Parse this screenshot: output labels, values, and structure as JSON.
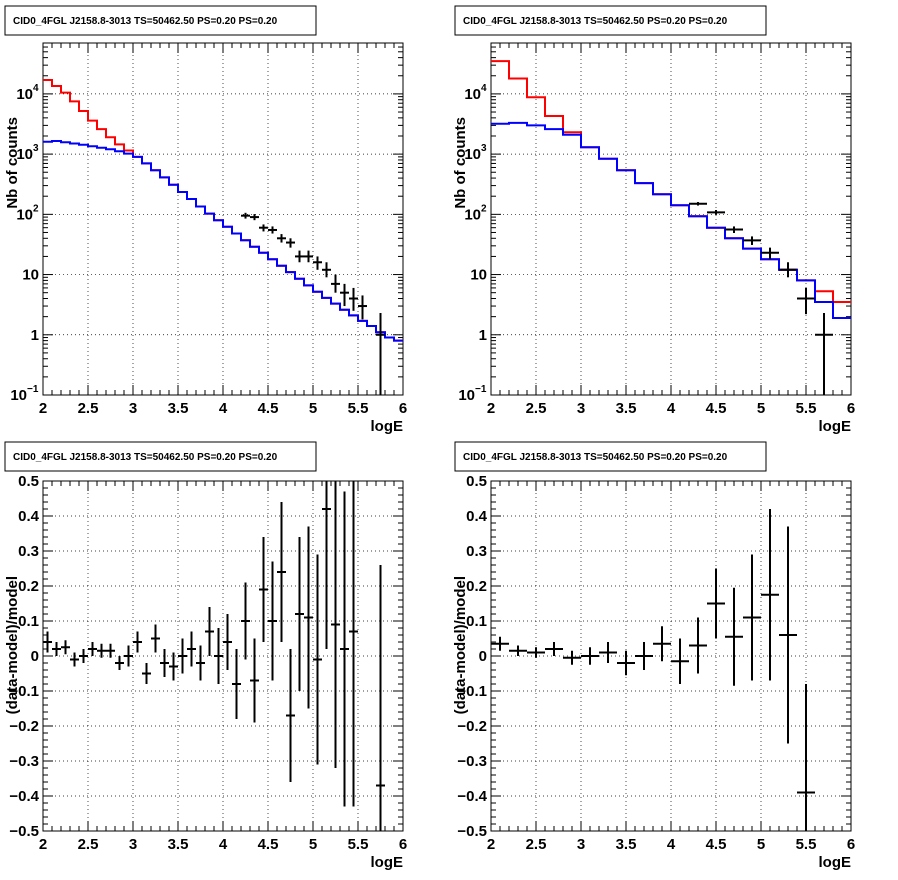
{
  "chart_data": [
    {
      "type": "histogram",
      "title": "CID0_4FGL J2158.8-3013 TS=50462.50 PS=0.20 PS=0.20",
      "xlabel": "logE",
      "ylabel": "Nb of counts",
      "xlim": [
        2,
        6
      ],
      "ylim": [
        0.1,
        70000
      ],
      "yscale": "log",
      "grid": true,
      "xticks": [
        "2",
        "2.5",
        "3",
        "3.5",
        "4",
        "4.5",
        "5",
        "5.5",
        "6"
      ],
      "yticks": [
        {
          "value": 0.1,
          "base": "10",
          "exp": "−1"
        },
        {
          "value": 1,
          "text": "1"
        },
        {
          "value": 10,
          "text": "10"
        },
        {
          "value": 100,
          "base": "10",
          "exp": "2"
        },
        {
          "value": 1000,
          "base": "10",
          "exp": "3"
        },
        {
          "value": 10000,
          "base": "10",
          "exp": "4"
        }
      ],
      "bin_edges": [
        2.0,
        2.1,
        2.2,
        2.3,
        2.4,
        2.5,
        2.6,
        2.7,
        2.8,
        2.9,
        3.0,
        3.1,
        3.2,
        3.3,
        3.4,
        3.5,
        3.6,
        3.7,
        3.8,
        3.9,
        4.0,
        4.1,
        4.2,
        4.3,
        4.4,
        4.5,
        4.6,
        4.7,
        4.8,
        4.9,
        5.0,
        5.1,
        5.2,
        5.3,
        5.4,
        5.5,
        5.6,
        5.7,
        5.8,
        5.9,
        6.0
      ],
      "series": [
        {
          "role": "total-model",
          "color": "#ff0000",
          "values": [
            17000,
            13500,
            10500,
            7500,
            5200,
            3600,
            2600,
            1900,
            1450,
            1150,
            900,
            700,
            540,
            410,
            310,
            235,
            180,
            135,
            103,
            80,
            62,
            48,
            37,
            29,
            23,
            18,
            14,
            11,
            8.5,
            6.6,
            5.2,
            4.1,
            3.3,
            2.6,
            2.1,
            1.7,
            1.4,
            1.1,
            0.9,
            0.8
          ]
        },
        {
          "role": "source-model",
          "color": "#0000ff",
          "values": [
            1600,
            1650,
            1580,
            1500,
            1430,
            1350,
            1280,
            1200,
            1120,
            1020,
            900,
            700,
            540,
            410,
            310,
            235,
            180,
            135,
            103,
            80,
            62,
            48,
            37,
            29,
            23,
            18,
            14,
            11,
            8.5,
            6.6,
            5.2,
            4.1,
            3.3,
            2.6,
            2.1,
            1.7,
            1.4,
            1.1,
            0.9,
            0.8
          ]
        }
      ],
      "points": [
        {
          "x": 4.25,
          "y": 95,
          "lo": 85,
          "hi": 106
        },
        {
          "x": 4.35,
          "y": 90,
          "lo": 80,
          "hi": 101
        },
        {
          "x": 4.45,
          "y": 60,
          "lo": 52,
          "hi": 68
        },
        {
          "x": 4.55,
          "y": 55,
          "lo": 48,
          "hi": 63
        },
        {
          "x": 4.65,
          "y": 40,
          "lo": 34,
          "hi": 47
        },
        {
          "x": 4.75,
          "y": 34,
          "lo": 28,
          "hi": 40
        },
        {
          "x": 4.85,
          "y": 20,
          "lo": 16,
          "hi": 25
        },
        {
          "x": 4.95,
          "y": 20,
          "lo": 16,
          "hi": 25
        },
        {
          "x": 5.05,
          "y": 16,
          "lo": 12,
          "hi": 20
        },
        {
          "x": 5.15,
          "y": 12,
          "lo": 9,
          "hi": 16
        },
        {
          "x": 5.25,
          "y": 7,
          "lo": 5,
          "hi": 10
        },
        {
          "x": 5.35,
          "y": 5,
          "lo": 3,
          "hi": 7
        },
        {
          "x": 5.45,
          "y": 4,
          "lo": 2.5,
          "hi": 6
        },
        {
          "x": 5.55,
          "y": 3,
          "lo": 1.8,
          "hi": 4.5
        },
        {
          "x": 5.75,
          "y": 1,
          "lo": 0.1,
          "hi": 2.3
        }
      ]
    },
    {
      "type": "histogram",
      "title": "CID0_4FGL J2158.8-3013 TS=50462.50 PS=0.20 PS=0.20",
      "xlabel": "logE",
      "ylabel": "Nb of counts",
      "xlim": [
        2,
        6
      ],
      "ylim": [
        0.1,
        70000
      ],
      "yscale": "log",
      "grid": true,
      "xticks": [
        "2",
        "2.5",
        "3",
        "3.5",
        "4",
        "4.5",
        "5",
        "5.5",
        "6"
      ],
      "yticks": [
        {
          "value": 0.1,
          "base": "10",
          "exp": "−1"
        },
        {
          "value": 1,
          "text": "1"
        },
        {
          "value": 10,
          "text": "10"
        },
        {
          "value": 100,
          "base": "10",
          "exp": "2"
        },
        {
          "value": 1000,
          "base": "10",
          "exp": "3"
        },
        {
          "value": 10000,
          "base": "10",
          "exp": "4"
        }
      ],
      "bin_edges": [
        2.0,
        2.2,
        2.4,
        2.6,
        2.8,
        3.0,
        3.2,
        3.4,
        3.6,
        3.8,
        4.0,
        4.2,
        4.4,
        4.6,
        4.8,
        5.0,
        5.2,
        5.4,
        5.6,
        5.8,
        6.0
      ],
      "series": [
        {
          "role": "total-model",
          "color": "#ff0000",
          "values": [
            35000,
            18000,
            8800,
            4300,
            2300,
            1300,
            840,
            540,
            330,
            215,
            142,
            93,
            60,
            40,
            27,
            18,
            12,
            8,
            5.3,
            3.5
          ]
        },
        {
          "role": "source-model",
          "color": "#0000ff",
          "values": [
            3200,
            3300,
            3000,
            2600,
            2100,
            1300,
            840,
            540,
            330,
            215,
            142,
            93,
            60,
            40,
            27,
            18,
            12,
            8,
            3.5,
            1.9
          ]
        }
      ],
      "points": [
        {
          "x": 4.3,
          "y": 150,
          "lo": 140,
          "hi": 160
        },
        {
          "x": 4.5,
          "y": 108,
          "lo": 98,
          "hi": 118
        },
        {
          "x": 4.7,
          "y": 56,
          "lo": 49,
          "hi": 63
        },
        {
          "x": 4.9,
          "y": 37,
          "lo": 31,
          "hi": 43
        },
        {
          "x": 5.1,
          "y": 23,
          "lo": 18,
          "hi": 28
        },
        {
          "x": 5.3,
          "y": 12,
          "lo": 9,
          "hi": 16
        },
        {
          "x": 5.5,
          "y": 4,
          "lo": 2.2,
          "hi": 6
        },
        {
          "x": 5.7,
          "y": 1,
          "lo": 0.1,
          "hi": 2.3
        }
      ]
    },
    {
      "type": "scatter",
      "title": "CID0_4FGL J2158.8-3013 TS=50462.50 PS=0.20 PS=0.20",
      "xlabel": "logE",
      "ylabel": "(data-model)/model",
      "xlim": [
        2,
        6
      ],
      "ylim": [
        -0.5,
        0.5
      ],
      "grid": true,
      "xticks": [
        "2",
        "2.5",
        "3",
        "3.5",
        "4",
        "4.5",
        "5",
        "5.5",
        "6"
      ],
      "yticks": [
        "−0.5",
        "−0.4",
        "−0.3",
        "−0.2",
        "−0.1",
        "0",
        "0.1",
        "0.2",
        "0.3",
        "0.4",
        "0.5"
      ],
      "xerr": 0.05,
      "points": [
        {
          "x": 2.05,
          "y": 0.04,
          "err": 0.03
        },
        {
          "x": 2.15,
          "y": 0.02,
          "err": 0.02
        },
        {
          "x": 2.25,
          "y": 0.025,
          "err": 0.02
        },
        {
          "x": 2.35,
          "y": -0.01,
          "err": 0.02
        },
        {
          "x": 2.45,
          "y": 0.0,
          "err": 0.02
        },
        {
          "x": 2.55,
          "y": 0.02,
          "err": 0.02
        },
        {
          "x": 2.65,
          "y": 0.015,
          "err": 0.02
        },
        {
          "x": 2.75,
          "y": 0.015,
          "err": 0.02
        },
        {
          "x": 2.85,
          "y": -0.02,
          "err": 0.02
        },
        {
          "x": 2.95,
          "y": 0.0,
          "err": 0.03
        },
        {
          "x": 3.05,
          "y": 0.04,
          "err": 0.03
        },
        {
          "x": 3.15,
          "y": -0.05,
          "err": 0.03
        },
        {
          "x": 3.25,
          "y": 0.05,
          "err": 0.04
        },
        {
          "x": 3.35,
          "y": -0.02,
          "err": 0.04
        },
        {
          "x": 3.45,
          "y": -0.03,
          "err": 0.04
        },
        {
          "x": 3.55,
          "y": 0.0,
          "err": 0.05
        },
        {
          "x": 3.65,
          "y": 0.02,
          "err": 0.05
        },
        {
          "x": 3.75,
          "y": -0.02,
          "err": 0.05
        },
        {
          "x": 3.85,
          "y": 0.07,
          "err": 0.07
        },
        {
          "x": 3.95,
          "y": 0.0,
          "err": 0.08
        },
        {
          "x": 4.05,
          "y": 0.04,
          "err": 0.08
        },
        {
          "x": 4.15,
          "y": -0.08,
          "err": 0.1
        },
        {
          "x": 4.25,
          "y": 0.1,
          "err": 0.11
        },
        {
          "x": 4.35,
          "y": -0.07,
          "err": 0.12
        },
        {
          "x": 4.45,
          "y": 0.19,
          "err": 0.15
        },
        {
          "x": 4.55,
          "y": 0.1,
          "err": 0.17
        },
        {
          "x": 4.65,
          "y": 0.24,
          "err": 0.2
        },
        {
          "x": 4.75,
          "y": -0.17,
          "err": 0.19
        },
        {
          "x": 4.85,
          "y": 0.12,
          "err": 0.22
        },
        {
          "x": 4.95,
          "y": 0.11,
          "err": 0.26
        },
        {
          "x": 5.05,
          "y": -0.01,
          "err": 0.3
        },
        {
          "x": 5.15,
          "y": 0.42,
          "err": 0.4
        },
        {
          "x": 5.25,
          "y": 0.09,
          "err": 0.41
        },
        {
          "x": 5.35,
          "y": 0.02,
          "err": 0.45
        },
        {
          "x": 5.45,
          "y": 0.07,
          "err": 0.5
        },
        {
          "x": 5.75,
          "y": -0.37,
          "err": 0.63
        }
      ]
    },
    {
      "type": "scatter",
      "title": "CID0_4FGL J2158.8-3013 TS=50462.50 PS=0.20 PS=0.20",
      "xlabel": "logE",
      "ylabel": "(data-model)/model",
      "xlim": [
        2,
        6
      ],
      "ylim": [
        -0.5,
        0.5
      ],
      "grid": true,
      "xticks": [
        "2",
        "2.5",
        "3",
        "3.5",
        "4",
        "4.5",
        "5",
        "5.5",
        "6"
      ],
      "yticks": [
        "−0.5",
        "−0.4",
        "−0.3",
        "−0.2",
        "−0.1",
        "0",
        "0.1",
        "0.2",
        "0.3",
        "0.4",
        "0.5"
      ],
      "xerr": 0.1,
      "points": [
        {
          "x": 2.1,
          "y": 0.035,
          "err": 0.02
        },
        {
          "x": 2.3,
          "y": 0.015,
          "err": 0.015
        },
        {
          "x": 2.5,
          "y": 0.01,
          "err": 0.015
        },
        {
          "x": 2.7,
          "y": 0.02,
          "err": 0.02
        },
        {
          "x": 2.9,
          "y": -0.005,
          "err": 0.02
        },
        {
          "x": 3.1,
          "y": 0.0,
          "err": 0.025
        },
        {
          "x": 3.3,
          "y": 0.01,
          "err": 0.03
        },
        {
          "x": 3.5,
          "y": -0.02,
          "err": 0.035
        },
        {
          "x": 3.7,
          "y": 0.0,
          "err": 0.04
        },
        {
          "x": 3.9,
          "y": 0.035,
          "err": 0.05
        },
        {
          "x": 4.1,
          "y": -0.015,
          "err": 0.065
        },
        {
          "x": 4.3,
          "y": 0.03,
          "err": 0.08
        },
        {
          "x": 4.5,
          "y": 0.15,
          "err": 0.1
        },
        {
          "x": 4.7,
          "y": 0.055,
          "err": 0.14
        },
        {
          "x": 4.9,
          "y": 0.11,
          "err": 0.18
        },
        {
          "x": 5.1,
          "y": 0.175,
          "err": 0.245
        },
        {
          "x": 5.3,
          "y": 0.06,
          "err": 0.31
        },
        {
          "x": 5.5,
          "y": -0.39,
          "err": 0.31
        }
      ]
    }
  ]
}
